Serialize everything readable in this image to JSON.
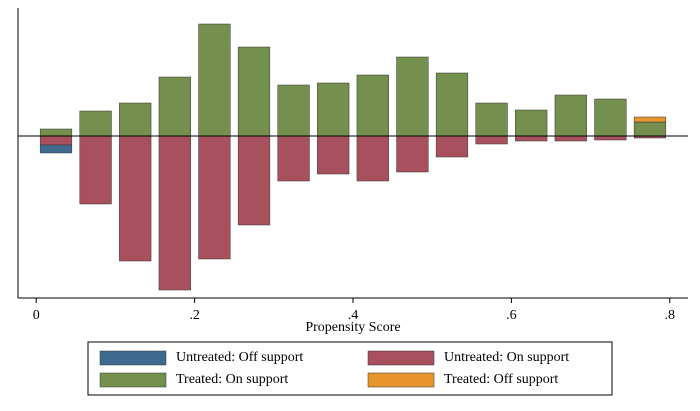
{
  "chart_data": {
    "type": "bar",
    "x_label": "Propensity Score",
    "x": [
      0.025,
      0.075,
      0.125,
      0.175,
      0.225,
      0.275,
      0.325,
      0.375,
      0.425,
      0.475,
      0.525,
      0.575,
      0.625,
      0.675,
      0.725,
      0.775
    ],
    "series": [
      {
        "name": "Untreated: Off support",
        "color": "#3e6a8f",
        "values": [
          -8,
          0,
          0,
          0,
          0,
          0,
          0,
          0,
          0,
          0,
          0,
          0,
          0,
          0,
          0,
          0
        ]
      },
      {
        "name": "Untreated: On support",
        "color": "#a8505e",
        "values": [
          -9,
          -68,
          -125,
          -154,
          -123,
          -89,
          -45,
          -38,
          -45,
          -36,
          -21,
          -8,
          -5,
          -5,
          -4,
          -2
        ]
      },
      {
        "name": "Treated: On support",
        "color": "#748f4e",
        "values": [
          7,
          25,
          33,
          59,
          112,
          89,
          51,
          53,
          61,
          79,
          63,
          33,
          26,
          41,
          37,
          14
        ]
      },
      {
        "name": "Treated: Off support",
        "color": "#e8952e",
        "values": [
          0,
          0,
          0,
          0,
          0,
          0,
          0,
          0,
          0,
          0,
          0,
          0,
          0,
          0,
          0,
          5
        ]
      }
    ],
    "xlim": [
      -0.023,
      0.823
    ],
    "xticks": [
      0,
      {
        "value": 0.2,
        "label": ".2"
      },
      {
        "value": 0.4,
        "label": ".4"
      },
      {
        "value": 0.6,
        "label": ".6"
      },
      {
        "value": 0.8,
        "label": ".8"
      }
    ],
    "ylim": [
      -162,
      128
    ]
  }
}
